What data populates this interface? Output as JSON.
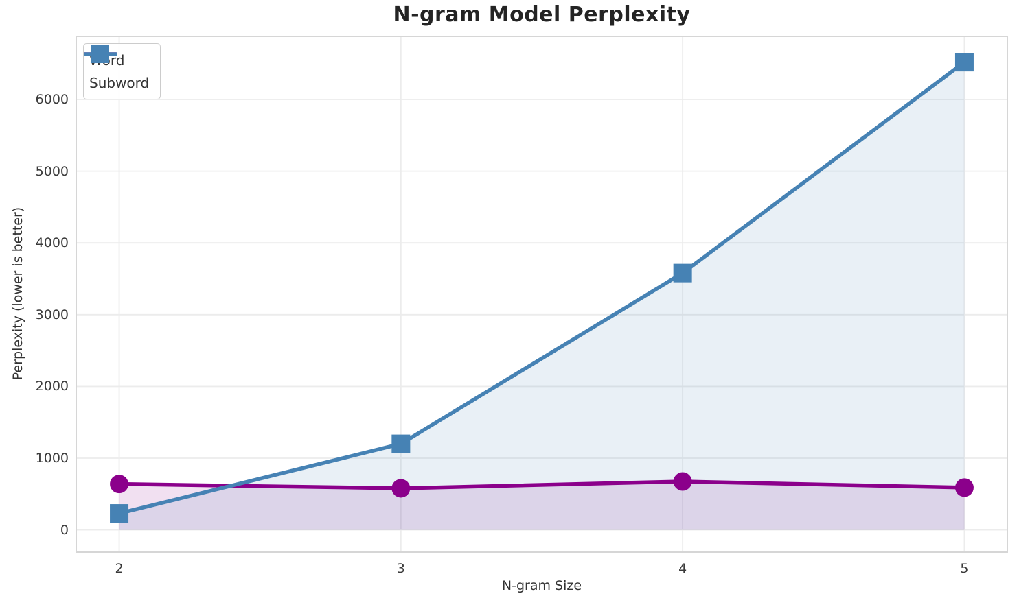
{
  "chart_data": {
    "type": "line",
    "title": "N-gram Model Perplexity",
    "xlabel": "N-gram Size",
    "ylabel": "Perplexity (lower is better)",
    "x": [
      2,
      3,
      4,
      5
    ],
    "series": [
      {
        "name": "Word",
        "values": [
          640,
          580,
          675,
          590
        ],
        "color": "#8B008B",
        "marker": "circle"
      },
      {
        "name": "Subword",
        "values": [
          230,
          1200,
          3580,
          6520
        ],
        "color": "#4682B4",
        "marker": "square"
      }
    ],
    "x_ticks": [
      2,
      3,
      4,
      5
    ],
    "y_ticks": [
      0,
      1000,
      2000,
      3000,
      4000,
      5000,
      6000
    ],
    "xlim": [
      1.85,
      5.15
    ],
    "ylim": [
      -300,
      6870
    ],
    "grid": true,
    "grid_color": "#ececec",
    "spine_color": "#d6d6d6",
    "fill_alpha": 0.12,
    "fill_baseline": 0,
    "line_width": 5.5,
    "marker_size": 27,
    "legend_position": "upper-left",
    "legend_labels": [
      "Word",
      "Subword"
    ]
  }
}
